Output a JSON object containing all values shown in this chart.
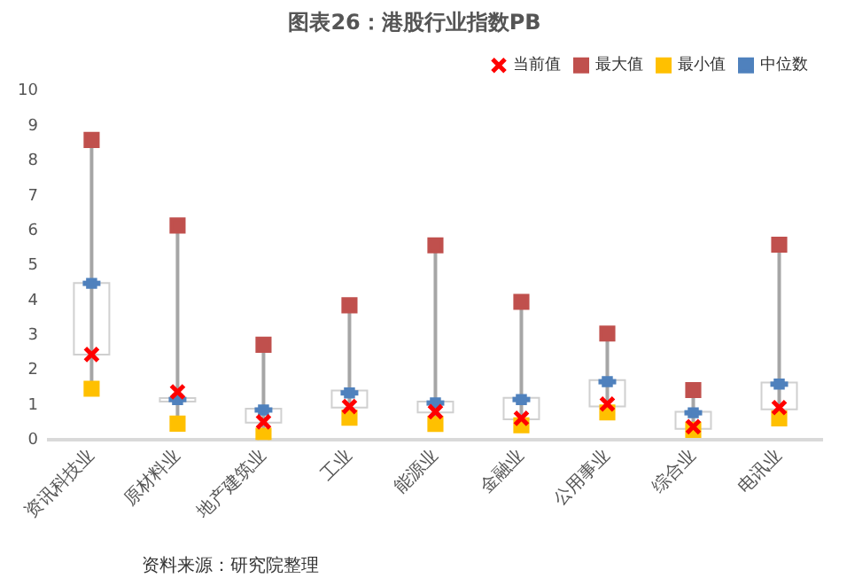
{
  "chart_data": {
    "type": "box",
    "title": "图表26：港股行业指数PB",
    "categories": [
      "资讯科技业",
      "原材料业",
      "地产建筑业",
      "工业",
      "能源业",
      "金融业",
      "公用事业",
      "综合业",
      "电讯业"
    ],
    "ylim": [
      0,
      10
    ],
    "yticks": [
      0,
      1,
      2,
      3,
      4,
      5,
      6,
      7,
      8,
      9,
      10
    ],
    "grid": false,
    "legend": "top right",
    "annotations": [
      "资料来源：研究院整理"
    ],
    "boxes": [
      {
        "low": 1.47,
        "q1": 2.45,
        "median": 4.49,
        "q3": 4.5,
        "high": 8.6
      },
      {
        "low": 0.47,
        "q1": 1.1,
        "median": 1.16,
        "q3": 1.2,
        "high": 6.15
      },
      {
        "low": 0.12,
        "q1": 0.5,
        "median": 0.86,
        "q3": 0.9,
        "high": 2.73
      },
      {
        "low": 0.64,
        "q1": 0.93,
        "median": 1.35,
        "q3": 1.42,
        "high": 3.86
      },
      {
        "low": 0.46,
        "q1": 0.79,
        "median": 1.06,
        "q3": 1.1,
        "high": 5.58
      },
      {
        "low": 0.42,
        "q1": 0.59,
        "median": 1.16,
        "q3": 1.21,
        "high": 3.96
      },
      {
        "low": 0.79,
        "q1": 0.96,
        "median": 1.67,
        "q3": 1.72,
        "high": 3.05
      },
      {
        "low": 0.29,
        "q1": 0.32,
        "median": 0.78,
        "q3": 0.81,
        "high": 1.43
      },
      {
        "low": 0.62,
        "q1": 0.88,
        "median": 1.6,
        "q3": 1.65,
        "high": 5.6
      }
    ],
    "series": [
      {
        "type": "scatter",
        "name": "当前值",
        "color": "#ff0000",
        "marker": "cross",
        "values": [
          2.45,
          1.38,
          0.52,
          0.96,
          0.81,
          0.62,
          1.03,
          0.38,
          0.93
        ]
      },
      {
        "type": "scatter",
        "name": "最大值",
        "color": "#c0504d",
        "marker": "square",
        "values": [
          8.6,
          6.15,
          2.73,
          3.86,
          5.58,
          3.96,
          3.05,
          1.43,
          5.6
        ]
      },
      {
        "type": "scatter",
        "name": "最小值",
        "color": "#ffc000",
        "marker": "square",
        "values": [
          1.47,
          0.47,
          0.12,
          0.64,
          0.46,
          0.42,
          0.79,
          0.29,
          0.62
        ]
      },
      {
        "type": "scatter",
        "name": "中位数",
        "color": "#4f81bd",
        "marker": "square",
        "values": [
          4.49,
          1.16,
          0.86,
          1.35,
          1.06,
          1.16,
          1.67,
          0.78,
          1.6
        ]
      }
    ]
  }
}
